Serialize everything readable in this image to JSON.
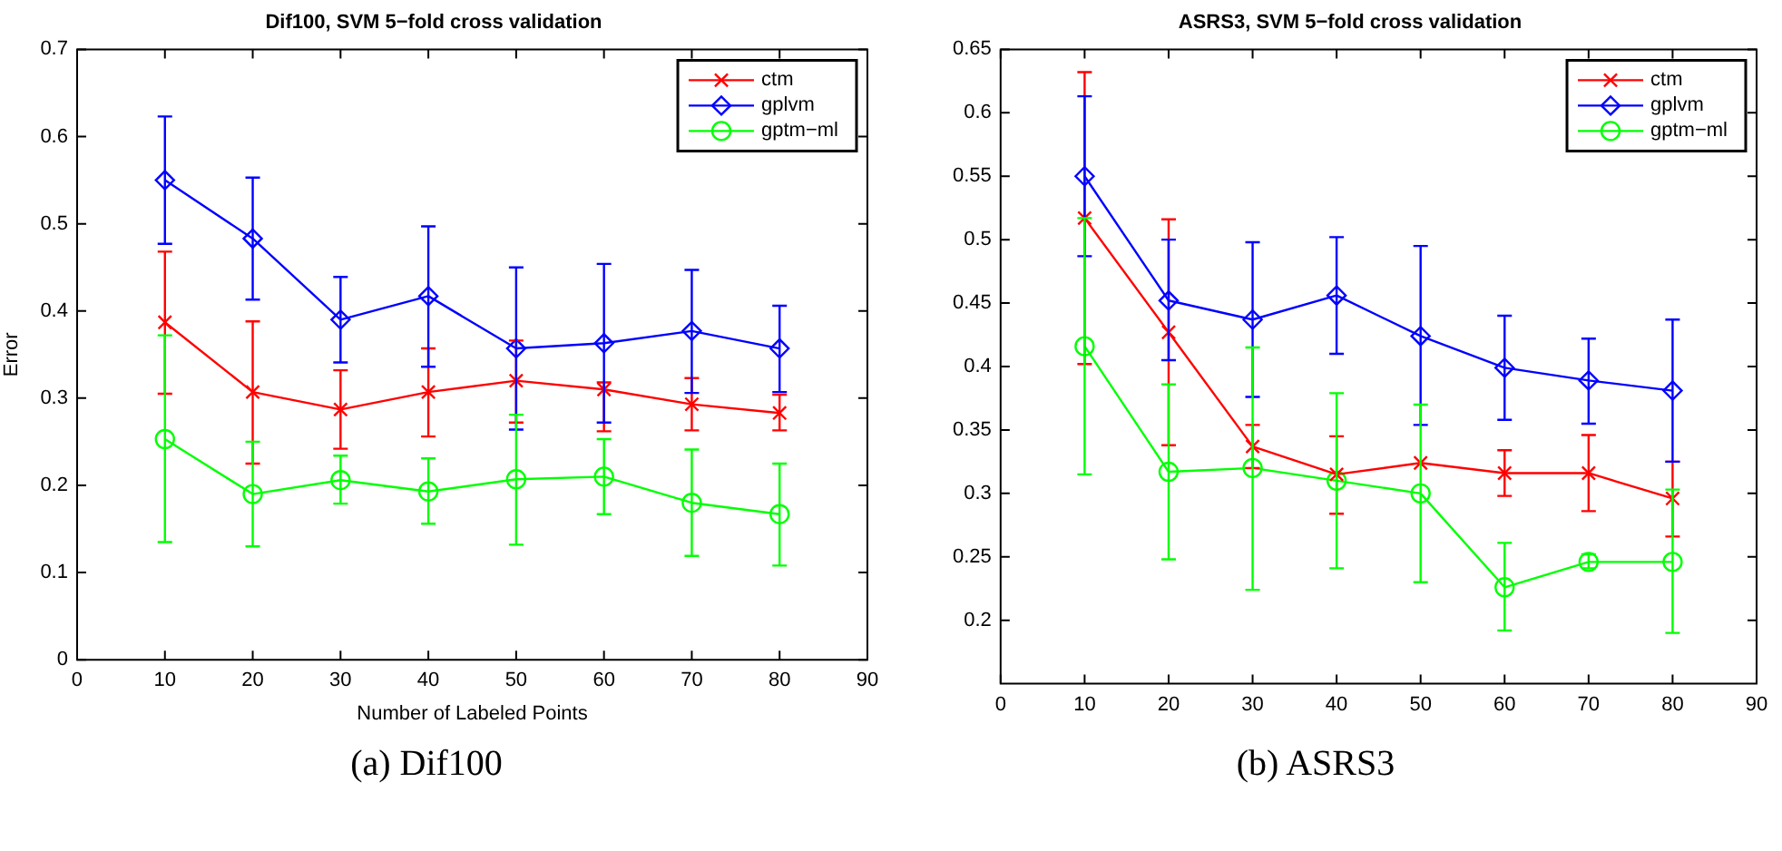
{
  "chart_data": [
    {
      "type": "line",
      "title": "Dif100, SVM 5−fold cross validation",
      "xlabel": "Number of Labeled Points",
      "ylabel": "Error",
      "x": [
        10,
        20,
        30,
        40,
        50,
        60,
        70,
        80
      ],
      "xlim": [
        0,
        90
      ],
      "xticks": [
        0,
        10,
        20,
        30,
        40,
        50,
        60,
        70,
        80,
        90
      ],
      "ylim": [
        0,
        0.7
      ],
      "yticks": [
        0,
        0.1,
        0.2,
        0.3,
        0.4,
        0.5,
        0.6,
        0.7
      ],
      "grid": false,
      "legend": "top right",
      "line_style": "solid",
      "annotations": [
        "(a) Dif100"
      ],
      "series": [
        {
          "name": "ctm",
          "color": "#ff0000",
          "marker": "cross",
          "values": [
            0.387,
            0.307,
            0.287,
            0.307,
            0.32,
            0.31,
            0.293,
            0.283
          ],
          "errors": [
            [
              0.305,
              0.468
            ],
            [
              0.225,
              0.388
            ],
            [
              0.242,
              0.332
            ],
            [
              0.256,
              0.357
            ],
            [
              0.272,
              0.366
            ],
            [
              0.262,
              0.318
            ],
            [
              0.263,
              0.323
            ],
            [
              0.263,
              0.304
            ]
          ]
        },
        {
          "name": "gplvm",
          "color": "#0000ff",
          "marker": "diamond",
          "values": [
            0.55,
            0.483,
            0.39,
            0.417,
            0.357,
            0.363,
            0.377,
            0.357
          ],
          "errors": [
            [
              0.477,
              0.623
            ],
            [
              0.413,
              0.553
            ],
            [
              0.341,
              0.439
            ],
            [
              0.336,
              0.497
            ],
            [
              0.264,
              0.45
            ],
            [
              0.272,
              0.454
            ],
            [
              0.306,
              0.447
            ],
            [
              0.307,
              0.406
            ]
          ]
        },
        {
          "name": "gptm−ml",
          "color": "#00ff00",
          "marker": "circle",
          "values": [
            0.253,
            0.19,
            0.206,
            0.193,
            0.207,
            0.21,
            0.18,
            0.167
          ],
          "errors": [
            [
              0.135,
              0.372
            ],
            [
              0.13,
              0.25
            ],
            [
              0.179,
              0.234
            ],
            [
              0.156,
              0.231
            ],
            [
              0.132,
              0.281
            ],
            [
              0.167,
              0.253
            ],
            [
              0.119,
              0.241
            ],
            [
              0.108,
              0.225
            ]
          ]
        }
      ]
    },
    {
      "type": "line",
      "title": "ASRS3, SVM 5−fold cross validation",
      "x": [
        10,
        20,
        30,
        40,
        50,
        60,
        70,
        80
      ],
      "xlim": [
        0,
        90
      ],
      "xticks": [
        0,
        10,
        20,
        30,
        40,
        50,
        60,
        70,
        80,
        90
      ],
      "ylim": [
        0.15,
        0.65
      ],
      "yticks": [
        0.2,
        0.25,
        0.3,
        0.35,
        0.4,
        0.45,
        0.5,
        0.55,
        0.6,
        0.65
      ],
      "grid": false,
      "legend": "top right",
      "line_style": "solid",
      "annotations": [
        "(b) ASRS3"
      ],
      "series": [
        {
          "name": "ctm",
          "color": "#ff0000",
          "marker": "cross",
          "values": [
            0.517,
            0.427,
            0.337,
            0.315,
            0.324,
            0.316,
            0.316,
            0.296
          ],
          "errors": [
            [
              0.402,
              0.632
            ],
            [
              0.338,
              0.516
            ],
            [
              0.32,
              0.354
            ],
            [
              0.284,
              0.345
            ],
            null,
            [
              0.298,
              0.334
            ],
            [
              0.286,
              0.346
            ],
            [
              0.266,
              0.325
            ]
          ]
        },
        {
          "name": "gplvm",
          "color": "#0000ff",
          "marker": "diamond",
          "values": [
            0.55,
            0.452,
            0.437,
            0.456,
            0.424,
            0.399,
            0.389,
            0.381
          ],
          "errors": [
            [
              0.487,
              0.613
            ],
            [
              0.405,
              0.5
            ],
            [
              0.376,
              0.498
            ],
            [
              0.41,
              0.502
            ],
            [
              0.354,
              0.495
            ],
            [
              0.358,
              0.44
            ],
            [
              0.355,
              0.422
            ],
            [
              0.325,
              0.437
            ]
          ]
        },
        {
          "name": "gptm−ml",
          "color": "#00ff00",
          "marker": "circle",
          "values": [
            0.416,
            0.317,
            0.32,
            0.31,
            0.3,
            0.226,
            0.246,
            0.246
          ],
          "errors": [
            [
              0.315,
              0.517
            ],
            [
              0.248,
              0.386
            ],
            [
              0.224,
              0.415
            ],
            [
              0.241,
              0.379
            ],
            [
              0.23,
              0.37
            ],
            [
              0.192,
              0.261
            ],
            [
              0.241,
              0.252
            ],
            [
              0.19,
              0.303
            ]
          ]
        }
      ]
    }
  ]
}
